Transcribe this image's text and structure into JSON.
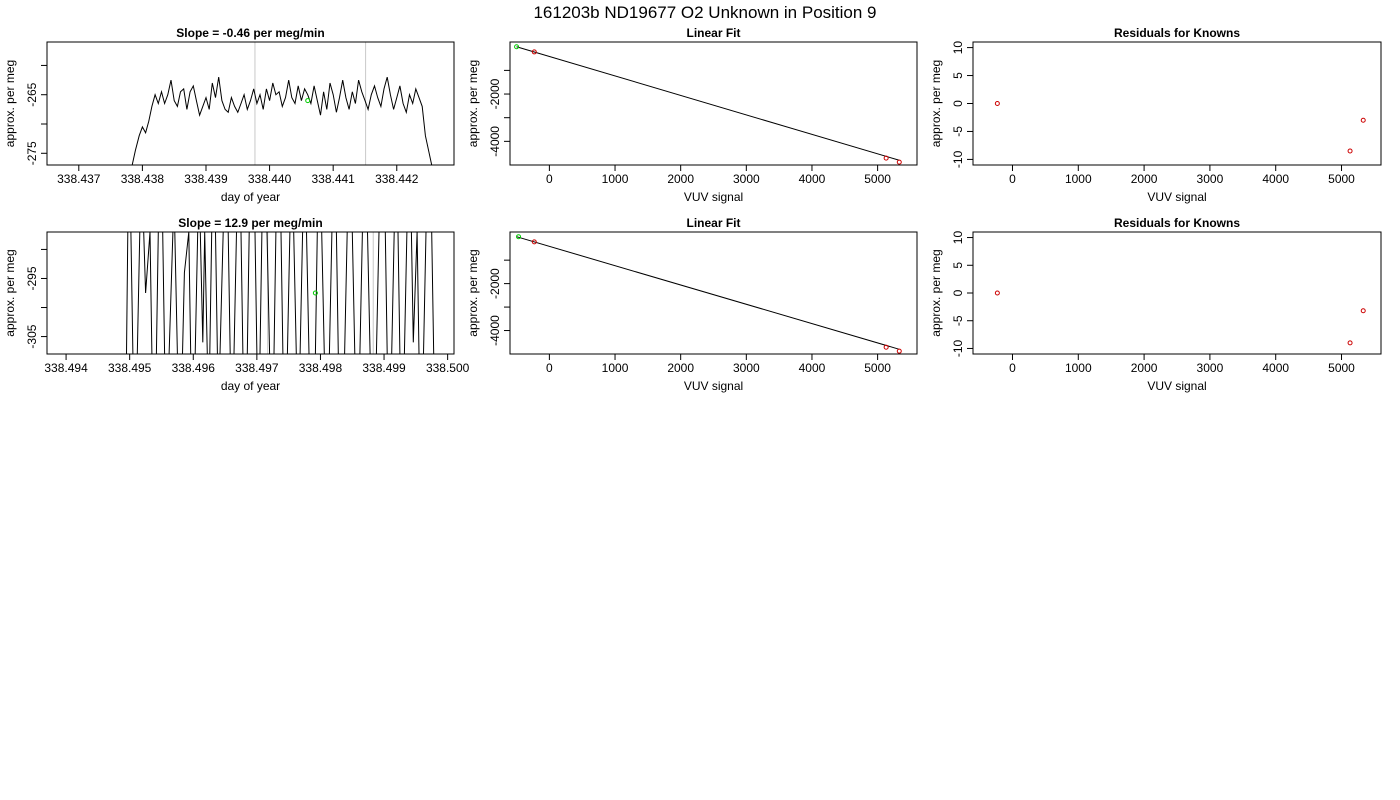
{
  "suptitle": "161203b      ND19677   O2 Unknown in Position  9",
  "chart_data": [
    {
      "type": "line",
      "title": "Slope =  -0.46  per meg/min",
      "xlabel": "day of year",
      "ylabel": "approx. per meg",
      "xlim": [
        338.4365,
        338.4429
      ],
      "ylim": [
        -277,
        -256
      ],
      "xticks": [
        338.437,
        338.438,
        338.439,
        338.44,
        338.441,
        338.442
      ],
      "xtick_labels": [
        "338.437",
        "338.438",
        "338.439",
        "338.440",
        "338.441",
        "338.442"
      ],
      "yticks": [
        -275,
        -270,
        -265,
        -260
      ],
      "ytick_labels": [
        "-275",
        "",
        "-265",
        ""
      ],
      "vlines": [
        338.43977,
        338.44151
      ],
      "series": [
        {
          "x": [
            338.43784,
            338.43789,
            338.43795,
            338.438,
            338.43805,
            338.4381,
            338.43815,
            338.4382,
            338.43825,
            338.4383,
            338.43835,
            338.4384,
            338.43845,
            338.4385,
            338.43855,
            338.4386,
            338.43865,
            338.4387,
            338.43875,
            338.4388,
            338.43885,
            338.4389,
            338.43895,
            338.439,
            338.43905,
            338.4391,
            338.43915,
            338.4392,
            338.43925,
            338.4393,
            338.43935,
            338.4394,
            338.43945,
            338.4395,
            338.43955,
            338.4396,
            338.43965,
            338.4397,
            338.43975,
            338.4398,
            338.43985,
            338.4399,
            338.43995,
            338.44,
            338.44005,
            338.4401,
            338.44015,
            338.4402,
            338.44025,
            338.4403,
            338.44035,
            338.4404,
            338.44045,
            338.4405,
            338.44055,
            338.4406,
            338.44065,
            338.4407,
            338.44075,
            338.4408,
            338.44085,
            338.4409,
            338.44095,
            338.441,
            338.44105,
            338.4411,
            338.44115,
            338.4412,
            338.44125,
            338.4413,
            338.44135,
            338.4414,
            338.44145,
            338.4415,
            338.44155,
            338.4416,
            338.44165,
            338.4417,
            338.44175,
            338.4418,
            338.44185,
            338.4419,
            338.44195,
            338.442,
            338.44205,
            338.4421,
            338.44215,
            338.4422,
            338.44225,
            338.4423,
            338.44235,
            338.4424,
            338.44245,
            338.44255
          ],
          "y": [
            -277,
            -274.5,
            -272,
            -270.5,
            -271.5,
            -269.5,
            -267,
            -265,
            -266.5,
            -264.5,
            -266.5,
            -265,
            -262.5,
            -266,
            -267,
            -264.5,
            -264,
            -267.5,
            -264.5,
            -263.5,
            -266,
            -268.5,
            -267,
            -265.5,
            -267.5,
            -263,
            -265.5,
            -262,
            -266,
            -267.5,
            -268,
            -265.5,
            -267,
            -268,
            -266.5,
            -265,
            -267.5,
            -266,
            -264,
            -266.5,
            -265,
            -267.5,
            -264,
            -266,
            -263,
            -265,
            -264.5,
            -267,
            -265.5,
            -262.5,
            -265.5,
            -266.5,
            -263.5,
            -266,
            -264,
            -265,
            -266.5,
            -263.5,
            -266,
            -268.5,
            -264.5,
            -267.5,
            -263,
            -265,
            -268,
            -265.5,
            -262.5,
            -265.5,
            -267.5,
            -264.5,
            -266.5,
            -262.5,
            -264.5,
            -266,
            -267.5,
            -265,
            -263.5,
            -265.5,
            -267,
            -264,
            -262,
            -265,
            -267.5,
            -265.5,
            -263.5,
            -266.5,
            -268,
            -265,
            -266.5,
            -264,
            -265.5,
            -267,
            -272,
            -277
          ]
        }
      ],
      "marker": {
        "x": 338.4406,
        "y": -266,
        "color": "#00cc00"
      }
    },
    {
      "type": "scatter",
      "title": "Linear Fit",
      "xlabel": "VUV signal",
      "ylabel": "approx. per meg",
      "xlim": [
        -600,
        5600
      ],
      "ylim": [
        -5000,
        200
      ],
      "xticks": [
        0,
        1000,
        2000,
        3000,
        4000,
        5000
      ],
      "xtick_labels": [
        "0",
        "1000",
        "2000",
        "3000",
        "4000",
        "5000"
      ],
      "yticks": [
        -4000,
        -3000,
        -2000,
        -1000
      ],
      "ytick_labels": [
        "-4000",
        "",
        "-2000",
        ""
      ],
      "fit_line": {
        "x": [
          -500,
          5330
        ],
        "y": [
          0,
          -4800
        ]
      },
      "knowns": {
        "x": [
          -230,
          5130,
          5330
        ],
        "y": [
          -220,
          -4710,
          -4880
        ],
        "color": "#cc0000"
      },
      "unknown": {
        "x": [
          -500
        ],
        "y": [
          0
        ],
        "color": "#00cc00"
      }
    },
    {
      "type": "scatter",
      "title": "Residuals for Knowns",
      "xlabel": "VUV signal",
      "ylabel": "approx. per meg",
      "xlim": [
        -600,
        5600
      ],
      "ylim": [
        -11,
        11
      ],
      "xticks": [
        0,
        1000,
        2000,
        3000,
        4000,
        5000
      ],
      "xtick_labels": [
        "0",
        "1000",
        "2000",
        "3000",
        "4000",
        "5000"
      ],
      "yticks": [
        -10,
        -5,
        0,
        5,
        10
      ],
      "ytick_labels": [
        "-10",
        "-5",
        "0",
        "5",
        "10"
      ],
      "points": {
        "x": [
          -230,
          5130,
          5330
        ],
        "y": [
          0,
          -8.5,
          -3
        ],
        "color": "#cc0000"
      }
    },
    {
      "type": "line",
      "title": "Slope =  12.9  per meg/min",
      "xlabel": "day of year",
      "ylabel": "approx. per meg",
      "xlim": [
        338.4937,
        338.5001
      ],
      "ylim": [
        -308,
        -287
      ],
      "xticks": [
        338.494,
        338.495,
        338.496,
        338.497,
        338.498,
        338.499,
        338.5
      ],
      "xtick_labels": [
        "338.494",
        "338.495",
        "338.496",
        "338.497",
        "338.498",
        "338.499",
        "338.500"
      ],
      "yticks": [
        -305,
        -300,
        -295,
        -290
      ],
      "ytick_labels": [
        "-305",
        "",
        "-295",
        ""
      ],
      "vlines": [
        338.49717,
        338.49883
      ],
      "series": [
        {
          "x": [
            338.49495,
            338.49497,
            338.49502,
            338.49505,
            338.49512,
            338.49516,
            338.49522,
            338.49525,
            338.49532,
            338.49535,
            338.49542,
            338.49545,
            338.49552,
            338.49555,
            338.49562,
            338.49568,
            338.49571,
            338.49575,
            338.49583,
            338.49586,
            338.49593,
            338.49596,
            338.49603,
            338.49607,
            338.49611,
            338.49615,
            338.49618,
            338.49622,
            338.49626,
            338.49629,
            338.49635,
            338.49638,
            338.49642,
            338.49647,
            338.49655,
            338.49658,
            338.49664,
            338.49668,
            338.49675,
            338.49678,
            338.49685,
            338.49688,
            338.49697,
            338.497,
            338.49705,
            338.49708,
            338.49716,
            338.4972,
            338.49727,
            338.4973,
            338.49738,
            338.49741,
            338.49748,
            338.49752,
            338.49758,
            338.49762,
            338.49768,
            338.49772,
            338.49778,
            338.49782,
            338.49792,
            338.49795,
            338.49802,
            338.49806,
            338.49814,
            338.49818,
            338.49825,
            338.49828,
            338.49838,
            338.49842,
            338.4985,
            338.49854,
            338.49862,
            338.49866,
            338.49874,
            338.49878,
            338.49888,
            338.49892,
            338.49902,
            338.49905,
            338.49912,
            338.49916,
            338.49922,
            338.49925,
            338.49932,
            338.49936,
            338.49943,
            338.49946,
            338.49952,
            338.49955,
            338.49962,
            338.49966,
            338.49975,
            338.49978,
            338.49986
          ],
          "y": [
            -308,
            -287,
            -287,
            -308,
            -308,
            -287,
            -287,
            -297.5,
            -287,
            -308,
            -308,
            -287,
            -287,
            -308,
            -308,
            -287,
            -287,
            -308,
            -308,
            -294,
            -287,
            -308,
            -308,
            -287,
            -287,
            -306,
            -287,
            -308,
            -308,
            -287,
            -287,
            -308,
            -308,
            -287,
            -287,
            -308,
            -308,
            -287,
            -287,
            -308,
            -308,
            -287,
            -287,
            -308,
            -308,
            -287,
            -287,
            -308,
            -308,
            -287,
            -287,
            -308,
            -308,
            -287,
            -287,
            -308,
            -308,
            -287,
            -287,
            -308,
            -308,
            -287,
            -287,
            -308,
            -308,
            -287,
            -287,
            -308,
            -308,
            -287,
            -287,
            -308,
            -308,
            -287,
            -287,
            -308,
            -308,
            -287,
            -287,
            -308,
            -308,
            -287,
            -287,
            -308,
            -308,
            -287,
            -287,
            -306,
            -287,
            -308,
            -308,
            -287,
            -287,
            -308,
            -308
          ]
        }
      ],
      "marker": {
        "x": 338.49792,
        "y": -297.5,
        "color": "#00cc00"
      }
    },
    {
      "type": "scatter",
      "title": "Linear Fit",
      "xlabel": "VUV signal",
      "ylabel": "approx. per meg",
      "xlim": [
        -600,
        5600
      ],
      "ylim": [
        -5000,
        200
      ],
      "xticks": [
        0,
        1000,
        2000,
        3000,
        4000,
        5000
      ],
      "xtick_labels": [
        "0",
        "1000",
        "2000",
        "3000",
        "4000",
        "5000"
      ],
      "yticks": [
        -4000,
        -3000,
        -2000,
        -1000
      ],
      "ytick_labels": [
        "-4000",
        "",
        "-2000",
        ""
      ],
      "fit_line": {
        "x": [
          -500,
          5330
        ],
        "y": [
          0,
          -4800
        ]
      },
      "knowns": {
        "x": [
          -230,
          5130,
          5330
        ],
        "y": [
          -220,
          -4710,
          -4880
        ],
        "color": "#cc0000"
      },
      "unknown": {
        "x": [
          -470
        ],
        "y": [
          0
        ],
        "color": "#00cc00"
      }
    },
    {
      "type": "scatter",
      "title": "Residuals for Knowns",
      "xlabel": "VUV signal",
      "ylabel": "approx. per meg",
      "xlim": [
        -600,
        5600
      ],
      "ylim": [
        -11,
        11
      ],
      "xticks": [
        0,
        1000,
        2000,
        3000,
        4000,
        5000
      ],
      "xtick_labels": [
        "0",
        "1000",
        "2000",
        "3000",
        "4000",
        "5000"
      ],
      "yticks": [
        -10,
        -5,
        0,
        5,
        10
      ],
      "ytick_labels": [
        "-10",
        "-5",
        "0",
        "5",
        "10"
      ],
      "points": {
        "x": [
          -230,
          5130,
          5330
        ],
        "y": [
          0,
          -9,
          -3.2
        ],
        "color": "#cc0000"
      }
    }
  ]
}
